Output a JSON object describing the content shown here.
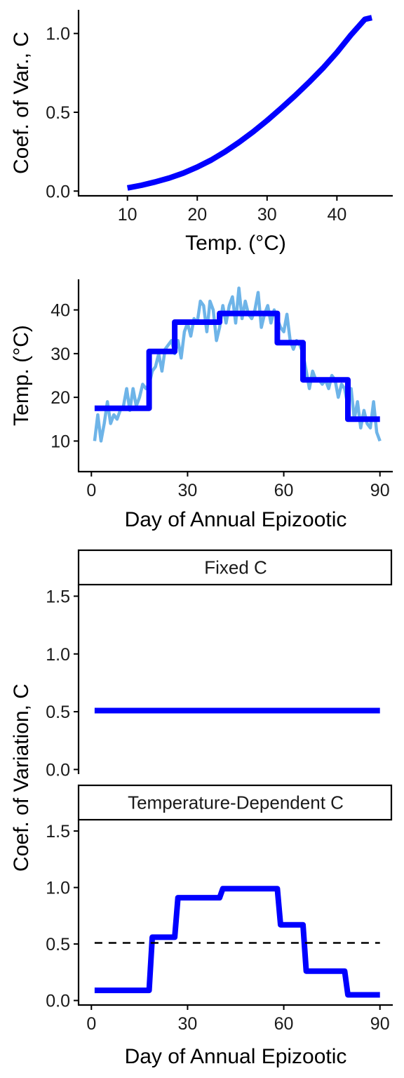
{
  "chart_data": [
    {
      "id": "cv-vs-temp",
      "type": "line",
      "xlabel": "Temp. (°C)",
      "ylabel": "Coef. of Var., C",
      "xlim": [
        3,
        48
      ],
      "ylim": [
        -0.03,
        1.15
      ],
      "xticks": [
        10,
        20,
        30,
        40
      ],
      "yticks": [
        0.0,
        0.5,
        1.0
      ],
      "ytick_labels": [
        "0.0",
        "0.5",
        "1.0"
      ],
      "series": [
        {
          "color": "#0000FF",
          "x": [
            10,
            12,
            14,
            16,
            18,
            20,
            22,
            24,
            26,
            28,
            30,
            32,
            34,
            36,
            38,
            40,
            42,
            44,
            45
          ],
          "y": [
            0.02,
            0.037,
            0.058,
            0.083,
            0.114,
            0.152,
            0.197,
            0.25,
            0.31,
            0.376,
            0.448,
            0.525,
            0.605,
            0.69,
            0.78,
            0.88,
            0.99,
            1.09,
            1.1
          ]
        }
      ]
    },
    {
      "id": "temp-vs-day",
      "type": "line",
      "xlabel": "Day of Annual Epizootic",
      "ylabel": "Temp. (°C)",
      "xlim": [
        -4,
        94
      ],
      "ylim": [
        3,
        47
      ],
      "xticks": [
        0,
        30,
        60,
        90
      ],
      "yticks": [
        10,
        20,
        30,
        40
      ],
      "series": [
        {
          "color": "#6EB4E8",
          "x": [
            1,
            2,
            3,
            4,
            5,
            6,
            7,
            8,
            9,
            10,
            11,
            12,
            13,
            14,
            15,
            16,
            17,
            18,
            19,
            20,
            21,
            22,
            23,
            24,
            25,
            26,
            27,
            28,
            29,
            30,
            31,
            32,
            33,
            34,
            35,
            36,
            37,
            38,
            39,
            40,
            41,
            42,
            43,
            44,
            45,
            46,
            47,
            48,
            49,
            50,
            51,
            52,
            53,
            54,
            55,
            56,
            57,
            58,
            59,
            60,
            61,
            62,
            63,
            64,
            65,
            66,
            67,
            68,
            69,
            70,
            71,
            72,
            73,
            74,
            75,
            76,
            77,
            78,
            79,
            80,
            81,
            82,
            83,
            84,
            85,
            86,
            87,
            88,
            89,
            90
          ],
          "y": [
            10,
            16,
            10,
            14,
            19,
            14,
            16,
            15,
            17,
            18,
            22,
            17,
            22,
            18,
            20,
            23,
            22,
            23,
            26,
            27,
            30,
            26,
            31,
            32,
            33,
            30,
            33,
            29,
            35,
            37,
            34,
            38,
            37,
            42,
            41,
            35,
            42,
            40,
            33,
            36,
            41,
            37,
            41,
            43,
            37,
            45,
            38,
            42,
            39,
            38,
            40,
            44,
            36,
            39,
            41,
            37,
            40,
            38,
            36,
            35,
            39,
            33,
            31,
            33,
            32,
            30,
            26,
            22,
            26,
            24,
            24,
            23,
            24,
            22,
            25,
            24,
            20,
            23,
            22,
            18,
            22,
            15,
            19,
            13,
            17,
            14,
            13,
            19,
            12,
            10
          ]
        },
        {
          "color": "#0000FF",
          "x": [
            1,
            18,
            18,
            26,
            26,
            40,
            40,
            58,
            58,
            66,
            66,
            80,
            80,
            90
          ],
          "y": [
            17.5,
            17.5,
            30.5,
            30.5,
            37.2,
            37.2,
            39.2,
            39.2,
            32.5,
            32.5,
            24.0,
            24.0,
            15.0,
            15.0
          ]
        }
      ]
    },
    {
      "id": "cv-vs-day-fixed",
      "type": "line",
      "strip": "Fixed C",
      "xlim": [
        -4,
        94
      ],
      "ylim": [
        -0.04,
        1.6
      ],
      "yticks": [
        0.0,
        0.5,
        1.0,
        1.5
      ],
      "ytick_labels": [
        "0.0",
        "0.5",
        "1.0",
        "1.5"
      ],
      "series": [
        {
          "color": "#0000FF",
          "x": [
            1,
            90
          ],
          "y": [
            0.51,
            0.51
          ]
        }
      ]
    },
    {
      "id": "cv-vs-day-temp-dep",
      "type": "line",
      "strip": "Temperature-Dependent C",
      "xlabel": "Day of Annual Epizootic",
      "xlim": [
        -4,
        94
      ],
      "ylim": [
        -0.04,
        1.6
      ],
      "xticks": [
        0,
        30,
        60,
        90
      ],
      "yticks": [
        0.0,
        0.5,
        1.0,
        1.5
      ],
      "ytick_labels": [
        "0.0",
        "0.5",
        "1.0",
        "1.5"
      ],
      "series": [
        {
          "color": "#0000FF",
          "x": [
            1,
            18,
            19,
            26,
            27,
            40,
            41,
            58,
            59,
            66,
            67,
            79,
            80,
            90
          ],
          "y": [
            0.09,
            0.09,
            0.56,
            0.56,
            0.91,
            0.91,
            0.99,
            0.99,
            0.67,
            0.67,
            0.26,
            0.26,
            0.05,
            0.05
          ]
        },
        {
          "color": "#000000",
          "dashed": true,
          "x": [
            1,
            90
          ],
          "y": [
            0.51,
            0.51
          ]
        }
      ]
    }
  ],
  "shared_ylabel": "Coef. of Variation, C"
}
